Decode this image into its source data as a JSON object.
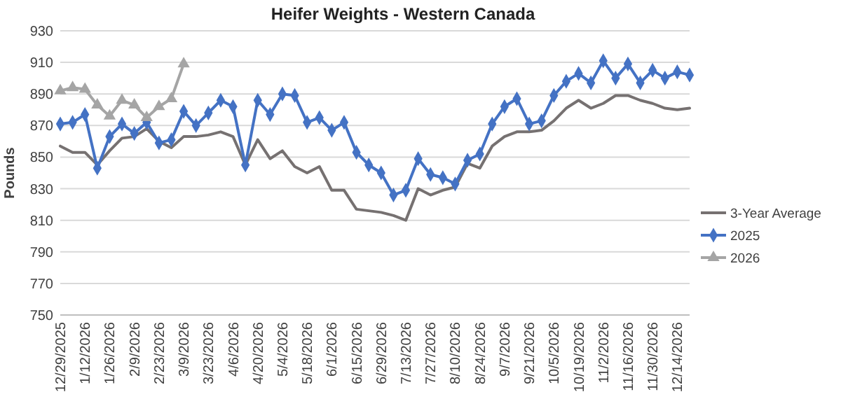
{
  "chart_data": {
    "type": "line",
    "title": "Heifer Weights - Western Canada",
    "ylabel": "Pounds",
    "categories": [
      "12/29/2025",
      null,
      "1/12/2026",
      null,
      "1/26/2026",
      null,
      "2/9/2026",
      null,
      "2/23/2026",
      null,
      "3/9/2026",
      null,
      "3/23/2026",
      null,
      "4/6/2026",
      null,
      "4/20/2026",
      null,
      "5/4/2026",
      null,
      "5/18/2026",
      null,
      "6/1/2026",
      null,
      "6/15/2026",
      null,
      "6/29/2026",
      null,
      "7/13/2026",
      null,
      "7/27/2026",
      null,
      "8/10/2026",
      null,
      "8/24/2026",
      null,
      "9/7/2026",
      null,
      "9/21/2026",
      null,
      "10/5/2026",
      null,
      "10/19/2026",
      null,
      "11/2/2026",
      null,
      "11/16/2026",
      null,
      "11/30/2026",
      null,
      "12/14/2026",
      null
    ],
    "series": [
      {
        "name": "3-Year Average",
        "color": "#767171",
        "marker": "none",
        "values": [
          857,
          853,
          853,
          845,
          854,
          862,
          863,
          868,
          860,
          856,
          863,
          863,
          864,
          866,
          863,
          845,
          861,
          849,
          854,
          844,
          840,
          844,
          829,
          829,
          817,
          816,
          815,
          813,
          810,
          830,
          826,
          829,
          831,
          846,
          843,
          857,
          863,
          866,
          866,
          867,
          873,
          881,
          886,
          881,
          884,
          889,
          889,
          886,
          884,
          881,
          880,
          881
        ]
      },
      {
        "name": "2025",
        "color": "#4472c4",
        "marker": "diamond",
        "values": [
          871,
          872,
          877,
          843,
          863,
          871,
          865,
          872,
          859,
          861,
          879,
          870,
          878,
          886,
          882,
          845,
          886,
          877,
          890,
          889,
          872,
          875,
          867,
          872,
          853,
          845,
          840,
          826,
          829,
          849,
          839,
          837,
          833,
          848,
          852,
          871,
          882,
          887,
          871,
          873,
          889,
          898,
          903,
          897,
          911,
          900,
          909,
          897,
          905,
          900,
          904,
          902
        ]
      },
      {
        "name": "2026",
        "color": "#a5a5a5",
        "marker": "triangle",
        "values": [
          892,
          894,
          893,
          883,
          876,
          886,
          883,
          875,
          882,
          887,
          909,
          null,
          null,
          null,
          null,
          null,
          null,
          null,
          null,
          null,
          null,
          null,
          null,
          null,
          null,
          null,
          null,
          null,
          null,
          null,
          null,
          null,
          null,
          null,
          null,
          null,
          null,
          null,
          null,
          null,
          null,
          null,
          null,
          null,
          null,
          null,
          null,
          null,
          null,
          null,
          null,
          null
        ]
      }
    ],
    "ylim": [
      750,
      930
    ],
    "yticks": [
      750,
      770,
      790,
      810,
      830,
      850,
      870,
      890,
      910,
      930
    ],
    "grid": "y",
    "legend": "right"
  }
}
